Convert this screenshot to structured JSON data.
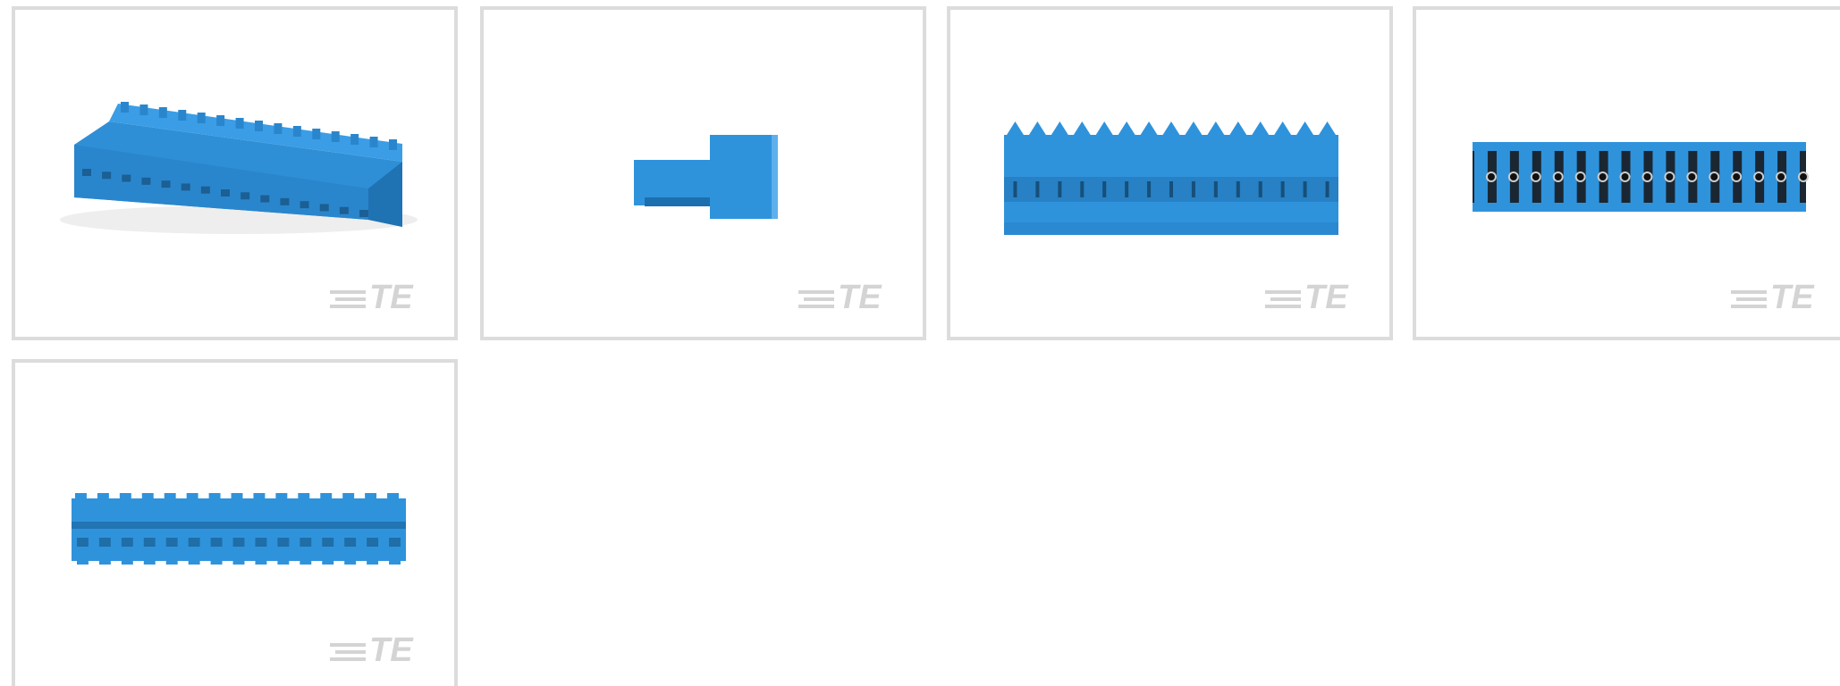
{
  "tiles": [
    {
      "logo": "TE"
    },
    {
      "logo": "TE"
    },
    {
      "logo": "TE"
    },
    {
      "logo": "TE"
    },
    {
      "logo": "TE"
    }
  ]
}
